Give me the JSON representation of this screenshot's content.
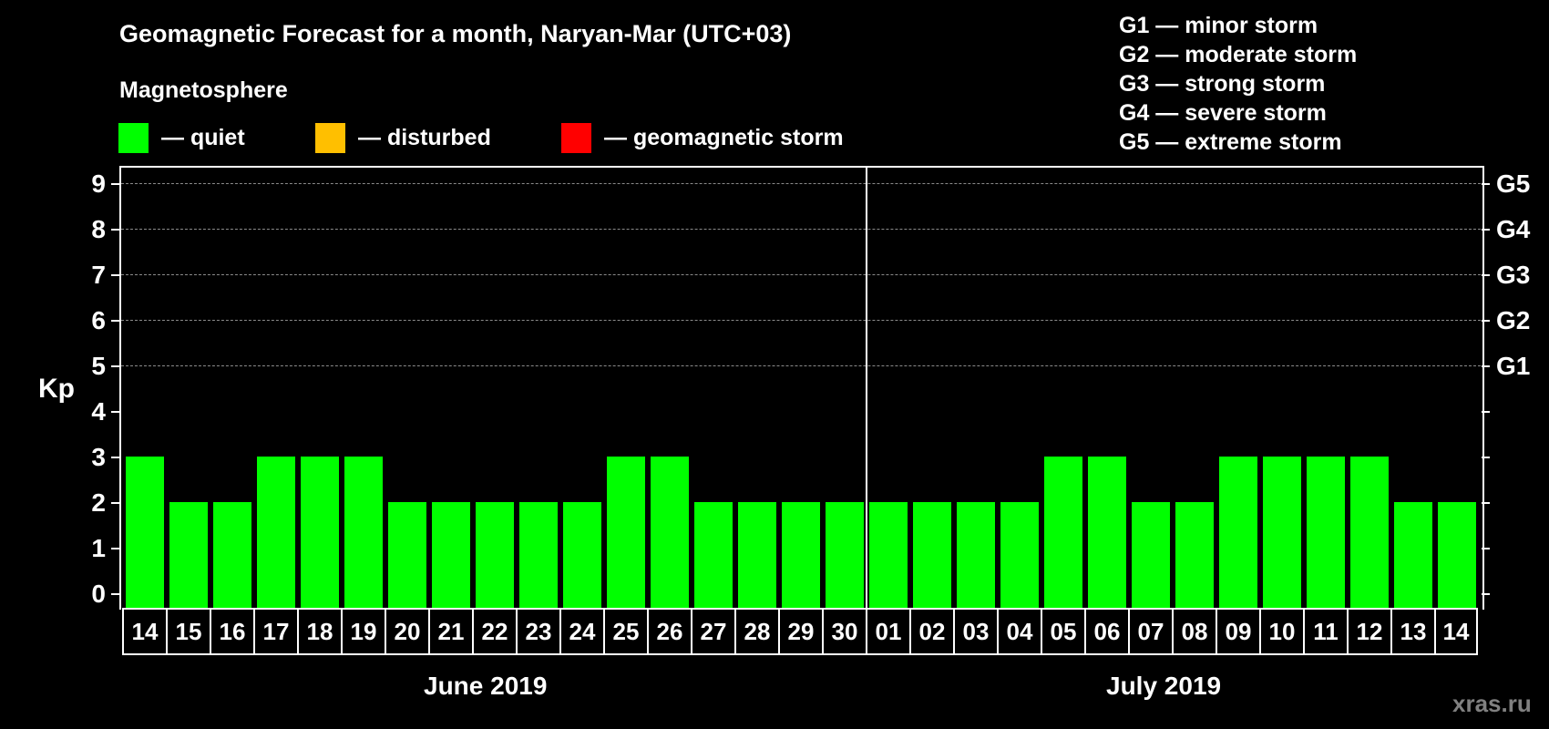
{
  "header": {
    "title": "Geomagnetic Forecast for a month, Naryan-Mar (UTC+03)",
    "subtitle": "Magnetosphere"
  },
  "legend": [
    {
      "label": "— quiet",
      "color": "#00ff00"
    },
    {
      "label": "— disturbed",
      "color": "#ffbf00"
    },
    {
      "label": "— geomagnetic storm",
      "color": "#ff0000"
    }
  ],
  "g_legend": [
    "G1 — minor storm",
    "G2 — moderate storm",
    "G3 — strong storm",
    "G4 — severe storm",
    "G5 — extreme storm"
  ],
  "axis": {
    "ylabel": "Kp",
    "y_ticks": [
      "0",
      "1",
      "2",
      "3",
      "4",
      "5",
      "6",
      "7",
      "8",
      "9"
    ],
    "right_ticks": [
      {
        "kp": 5,
        "label": "G1"
      },
      {
        "kp": 6,
        "label": "G2"
      },
      {
        "kp": 7,
        "label": "G3"
      },
      {
        "kp": 8,
        "label": "G4"
      },
      {
        "kp": 9,
        "label": "G5"
      }
    ]
  },
  "months": [
    {
      "label": "June 2019"
    },
    {
      "label": "July 2019"
    }
  ],
  "watermark": "xras.ru",
  "colors": {
    "quiet": "#00ff00",
    "disturbed": "#ffbf00",
    "storm": "#ff0000",
    "grid": "#8a8a8a"
  },
  "chart_data": {
    "type": "bar",
    "title": "Geomagnetic Forecast for a month, Naryan-Mar (UTC+03)",
    "xlabel": "",
    "ylabel": "Kp",
    "ylim": [
      0,
      9
    ],
    "grid": true,
    "categories": [
      "14",
      "15",
      "16",
      "17",
      "18",
      "19",
      "20",
      "21",
      "22",
      "23",
      "24",
      "25",
      "26",
      "27",
      "28",
      "29",
      "30",
      "01",
      "02",
      "03",
      "04",
      "05",
      "06",
      "07",
      "08",
      "09",
      "10",
      "11",
      "12",
      "13",
      "14"
    ],
    "months": [
      {
        "label": "June 2019",
        "days": 17
      },
      {
        "label": "July 2019",
        "days": 14
      }
    ],
    "values": [
      3,
      2,
      2,
      3,
      3,
      3,
      2,
      2,
      2,
      2,
      2,
      3,
      3,
      2,
      2,
      2,
      2,
      2,
      2,
      2,
      2,
      3,
      3,
      2,
      2,
      3,
      3,
      3,
      3,
      2,
      2
    ],
    "status": [
      "quiet",
      "quiet",
      "quiet",
      "quiet",
      "quiet",
      "quiet",
      "quiet",
      "quiet",
      "quiet",
      "quiet",
      "quiet",
      "quiet",
      "quiet",
      "quiet",
      "quiet",
      "quiet",
      "quiet",
      "quiet",
      "quiet",
      "quiet",
      "quiet",
      "quiet",
      "quiet",
      "quiet",
      "quiet",
      "quiet",
      "quiet",
      "quiet",
      "quiet",
      "quiet",
      "quiet"
    ],
    "legend": [
      "quiet",
      "disturbed",
      "geomagnetic storm"
    ],
    "right_axis": {
      "5": "G1",
      "6": "G2",
      "7": "G3",
      "8": "G4",
      "9": "G5"
    }
  }
}
